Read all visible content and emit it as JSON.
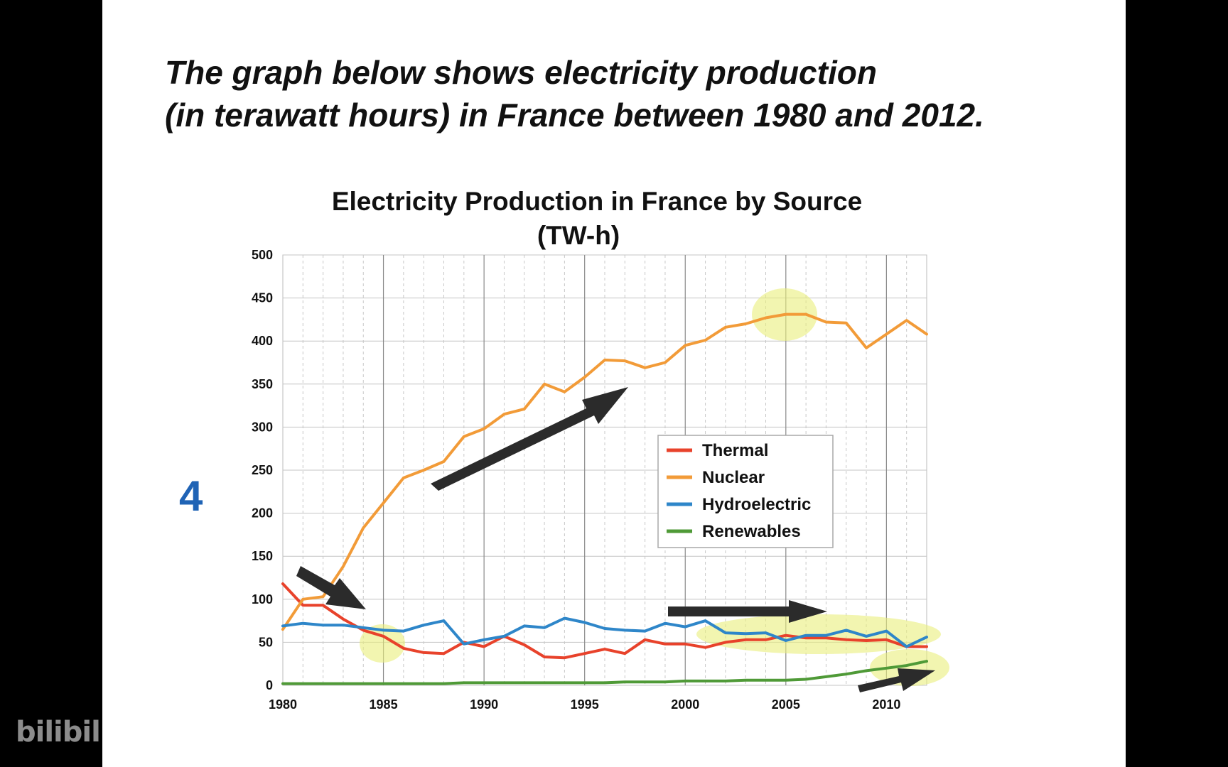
{
  "slide": {
    "heading_line1": "The graph below shows electricity production",
    "heading_line2": "(in terawatt hours) in France between 1980 and 2012.",
    "number": "4"
  },
  "watermark": "bilibili",
  "chart_data": {
    "type": "line",
    "title_line1": "Electricity Production in France by Source",
    "title_line2": "(TW-h)",
    "xlabel": "",
    "ylabel": "",
    "xlim": [
      1980,
      2012
    ],
    "ylim": [
      0,
      500
    ],
    "x_ticks": [
      "1980",
      "1985",
      "1990",
      "1995",
      "2000",
      "2005",
      "2010"
    ],
    "y_ticks": [
      "0",
      "50",
      "100",
      "150",
      "200",
      "250",
      "300",
      "350",
      "400",
      "450",
      "500"
    ],
    "grid": true,
    "legend_position": "center-right",
    "x": [
      1980,
      1981,
      1982,
      1983,
      1984,
      1985,
      1986,
      1987,
      1988,
      1989,
      1990,
      1991,
      1992,
      1993,
      1994,
      1995,
      1996,
      1997,
      1998,
      1999,
      2000,
      2001,
      2002,
      2003,
      2004,
      2005,
      2006,
      2007,
      2008,
      2009,
      2010,
      2011,
      2012
    ],
    "series": [
      {
        "name": "Thermal",
        "color": "#e8422b",
        "values": [
          118,
          93,
          93,
          77,
          64,
          57,
          43,
          38,
          37,
          50,
          45,
          57,
          47,
          33,
          32,
          37,
          42,
          37,
          53,
          48,
          48,
          44,
          50,
          53,
          53,
          58,
          55,
          55,
          53,
          52,
          53,
          45,
          45
        ]
      },
      {
        "name": "Nuclear",
        "color": "#f29b38",
        "values": [
          65,
          100,
          103,
          138,
          183,
          212,
          241,
          250,
          260,
          289,
          298,
          315,
          321,
          350,
          341,
          358,
          378,
          377,
          369,
          375,
          395,
          401,
          416,
          420,
          427,
          431,
          431,
          422,
          421,
          392,
          408,
          424,
          408
        ]
      },
      {
        "name": "Hydroelectric",
        "color": "#2e86c9",
        "values": [
          69,
          72,
          70,
          70,
          67,
          64,
          63,
          70,
          75,
          48,
          53,
          57,
          69,
          67,
          78,
          73,
          66,
          64,
          63,
          72,
          68,
          75,
          61,
          60,
          61,
          52,
          58,
          58,
          64,
          57,
          63,
          45,
          56
        ]
      },
      {
        "name": "Renewables",
        "color": "#4f9a37",
        "values": [
          2,
          2,
          2,
          2,
          2,
          2,
          2,
          2,
          2,
          3,
          3,
          3,
          3,
          3,
          3,
          3,
          3,
          4,
          4,
          4,
          5,
          5,
          5,
          6,
          6,
          6,
          7,
          10,
          13,
          17,
          20,
          23,
          28
        ]
      }
    ]
  }
}
